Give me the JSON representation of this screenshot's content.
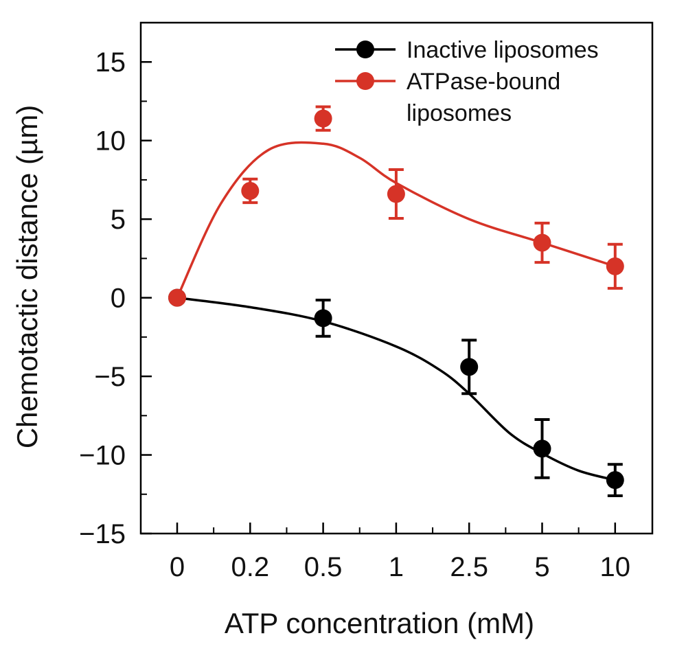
{
  "chart_data": {
    "type": "line",
    "xlabel": "ATP concentration (mM)",
    "ylabel": "Chemotactic distance (µm)",
    "categories": [
      "0",
      "0.2",
      "0.5",
      "1",
      "2.5",
      "5",
      "10"
    ],
    "ylim": [
      -15,
      17.5
    ],
    "yticks": [
      15,
      10,
      5,
      0,
      -5,
      -10,
      -15
    ],
    "ytick_labels": [
      "15",
      "10",
      "5",
      "0",
      "−5",
      "−10",
      "−15"
    ],
    "legend_position": "top-right",
    "grid": false,
    "series": [
      {
        "name": "Inactive liposomes",
        "legend_lines": [
          "Inactive liposomes"
        ],
        "color": "#000000",
        "points": [
          {
            "x": "0",
            "y": 0,
            "err": null
          },
          {
            "x": "0.5",
            "y": -1.3,
            "err": 1.15
          },
          {
            "x": "2.5",
            "y": -4.4,
            "err": 1.7
          },
          {
            "x": "5",
            "y": -9.6,
            "err": 1.85
          },
          {
            "x": "10",
            "y": -11.6,
            "err": 1.0
          }
        ]
      },
      {
        "name": "ATPase-bound liposomes",
        "legend_lines": [
          "ATPase-bound",
          "liposomes"
        ],
        "color": "#d63327",
        "points": [
          {
            "x": "0",
            "y": 0,
            "err": null
          },
          {
            "x": "0.2",
            "y": 6.8,
            "err": 0.75
          },
          {
            "x": "0.5",
            "y": 11.4,
            "err": 0.75
          },
          {
            "x": "1",
            "y": 6.6,
            "err": 1.55
          },
          {
            "x": "5",
            "y": 3.5,
            "err": 1.25
          },
          {
            "x": "10",
            "y": 2.0,
            "err": 1.4
          }
        ]
      }
    ],
    "fit_curves": [
      {
        "series": "ATPase-bound liposomes",
        "color": "#d63327",
        "points": [
          [
            0,
            0
          ],
          [
            0.6,
            6.0
          ],
          [
            1.25,
            9.4
          ],
          [
            2,
            9.8
          ],
          [
            2.5,
            8.9
          ],
          [
            3,
            7.3
          ],
          [
            4,
            5.0
          ],
          [
            5,
            3.5
          ],
          [
            6,
            2.0
          ]
        ]
      },
      {
        "series": "Inactive liposomes",
        "color": "#000000",
        "points": [
          [
            0,
            0
          ],
          [
            1,
            -0.6
          ],
          [
            2,
            -1.5
          ],
          [
            3,
            -3.1
          ],
          [
            3.6,
            -4.6
          ],
          [
            4,
            -6.1
          ],
          [
            4.55,
            -8.6
          ],
          [
            5,
            -9.9
          ],
          [
            5.5,
            -11.0
          ],
          [
            6,
            -11.6
          ]
        ]
      }
    ]
  }
}
